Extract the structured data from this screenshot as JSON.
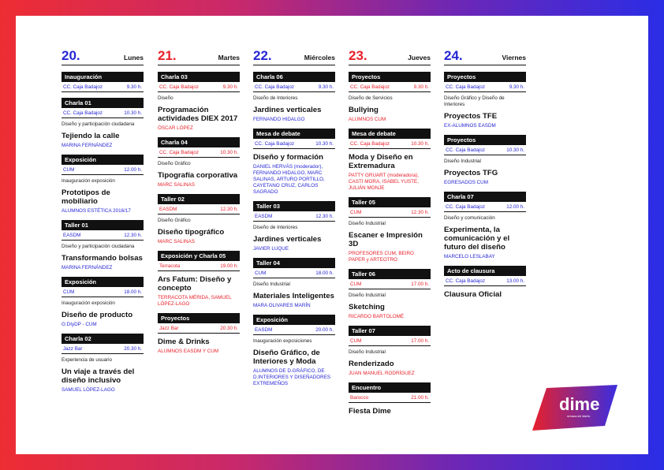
{
  "days": [
    {
      "num": "20.",
      "name": "Lunes",
      "color": "#2626d6",
      "events": [
        {
          "label": "Inauguración",
          "place": "CC. Caja Badajoz",
          "time": "9.30 h."
        },
        {
          "label": "Charla 01",
          "place": "CC. Caja Badajoz",
          "time": "10.30 h.",
          "category": "Diseño y participación ciudadana",
          "title": "Tejiendo la calle",
          "people": "MARINA FERNÁNDEZ"
        },
        {
          "label": "Exposición",
          "place": "CUM",
          "time": "12.00 h.",
          "category": "Inauguración exposición",
          "title": "Prototipos de mobiliario",
          "people": "ALUMNOS ESTÉTICA 2016/17"
        },
        {
          "label": "Taller 01",
          "place": "EASDM",
          "time": "12.30 h.",
          "category": "Diseño y participación ciudadana",
          "title": "Transformando bolsas",
          "people": "MARINA FERNÁNDEZ"
        },
        {
          "label": "Exposición",
          "place": "CUM",
          "time": "18.00 h.",
          "category": "Inauguración exposición",
          "title": "Diseño de producto",
          "people": "G:DIyDP - CUM"
        },
        {
          "label": "Charla 02",
          "place": "Jazz Bar",
          "time": "20.30 h.",
          "category": "Experiencia de usuario",
          "title": "Un viaje a través del diseño inclusivo",
          "people": "SAMUEL LÓPEZ-LAGO"
        }
      ]
    },
    {
      "num": "21.",
      "name": "Martes",
      "color": "#e8202a",
      "events": [
        {
          "label": "Charla 03",
          "place": "CC. Caja Badajoz",
          "time": "9.30 h.",
          "category": "Diseño",
          "title": "Programación actividades DIEX 2017",
          "people": "ÓSCAR LÓPEZ"
        },
        {
          "label": "Charla 04",
          "place": "CC. Caja Badajoz",
          "time": "10.30 h.",
          "category": "Diseño Gráfico",
          "title": "Tipografía corporativa",
          "people": "MARC SALINAS"
        },
        {
          "label": "Taller 02",
          "place": "EASDM",
          "time": "12.30 h.",
          "category": "Diseño Gráfico",
          "title": "Diseño tipográfico",
          "people": "MARC SALINAS"
        },
        {
          "label": "Exposición y Charla 05",
          "place": "Terracota",
          "time": "19.00 h.",
          "title": "Ars Fatum: Diseño y concepto",
          "people": "TERRACOTA MÉRIDA, SAMUEL LÓPEZ-LAGO"
        },
        {
          "label": "Proyectos",
          "place": "Jazz Bar",
          "time": "20.30 h.",
          "title": "Dime & Drinks",
          "people": "ALUMNOS EASDM Y CUM"
        }
      ]
    },
    {
      "num": "22.",
      "name": "Miércoles",
      "color": "#2626d6",
      "events": [
        {
          "label": "Charla 06",
          "place": "CC. Caja Badajoz",
          "time": "9.30 h.",
          "category": "Diseño de Interiores",
          "title": "Jardines verticales",
          "people": "FERNANDO HIDALGO"
        },
        {
          "label": "Mesa de debate",
          "place": "CC. Caja Badajoz",
          "time": "10.30 h.",
          "title": "Diseño y formación",
          "people": "DANIEL HERVÁS (moderador), FERNANDO HIDALGO, MARC SALINAS, ARTURO PORTILLO, CAYETANO CRUZ, CARLOS SAGRADO"
        },
        {
          "label": "Taller 03",
          "place": "EASDM",
          "time": "12.30 h.",
          "category": "Diseño de Interiores",
          "title": "Jardines verticales",
          "people": "JAVIER LUQUE"
        },
        {
          "label": "Taller 04",
          "place": "CUM",
          "time": "18.00 h.",
          "category": "Diseño Industrial",
          "title": "Materiales Inteligentes",
          "people": "MARA OLIVARES MARÍN"
        },
        {
          "label": "Exposición",
          "place": "EASDM",
          "time": "20.00 h.",
          "category": "Inauguración exposiciones",
          "title": "Diseño Gráfico, de Interiores y Moda",
          "people": "ALUMNOS DE D.GRÁFICO, DE D.INTERIORES Y DISEÑADORES EXTREMEÑOS"
        }
      ]
    },
    {
      "num": "23.",
      "name": "Jueves",
      "color": "#e8202a",
      "events": [
        {
          "label": "Proyectos",
          "place": "CC. Caja Badajoz",
          "time": "9.30 h.",
          "category": "Diseño de Servicios",
          "title": "Bullying",
          "people": "ALUMNOS CUM"
        },
        {
          "label": "Mesa de debate",
          "place": "CC. Caja Badajoz",
          "time": "10.30 h.",
          "title": "Moda y Diseño en Extremadura",
          "people": "PATTY GRUART (moderadora), CASTI MORA, ISABEL YUSTE, JULIÁN MONJE"
        },
        {
          "label": "Taller 05",
          "place": "CUM",
          "time": "12.30 h.",
          "category": "Diseño Industrial",
          "title": "Escaner e Impresión 3D",
          "people": "PROFESORES CUM, BEIRO PAPER y ARTEOTRO"
        },
        {
          "label": "Taller 06",
          "place": "CUM",
          "time": "17.00 h.",
          "category": "Diseño Industrial",
          "title": "Sketching",
          "people": "RICARDO BARTOLOMÉ"
        },
        {
          "label": "Taller 07",
          "place": "CUM",
          "time": "17.00 h.",
          "category": "Diseño Industrial",
          "title": "Renderizado",
          "people": "JUAN MANUEL RODRÍGUEZ"
        },
        {
          "label": "Encuentro",
          "place": "Barocco",
          "time": "21.00 h.",
          "title": "Fiesta Dime"
        }
      ]
    },
    {
      "num": "24.",
      "name": "Viernes",
      "color": "#2626d6",
      "events": [
        {
          "label": "Proyectos",
          "place": "CC. Caja Badajoz",
          "time": "9.30 h.",
          "category": "Diseño Gráfico y Diseño de Interiores",
          "title": "Proyectos TFE",
          "people": "EX-ALUMNOS EASDM"
        },
        {
          "label": "Proyectos",
          "place": "CC. Caja Badajoz",
          "time": "10.30 h.",
          "category": "Diseño Industrial",
          "title": "Proyectos TFG",
          "people": "EGRESADOS CUM"
        },
        {
          "label": "Charla 07",
          "place": "CC. Caja Badajoz",
          "time": "12.00 h.",
          "category": "Diseño y comunicación",
          "title": "Experimenta, la comunicación y el futuro del diseño",
          "people": "MARCELO LESLABAY"
        },
        {
          "label": "Acto de clausura",
          "place": "CC. Caja Badajoz",
          "time": "13.00 h.",
          "title": "Clausura Oficial"
        }
      ]
    }
  ],
  "logo": {
    "name": "dime",
    "tagline": "semana del diseño",
    "gradient_start": "#e8202a",
    "gradient_end": "#3a2de0"
  }
}
